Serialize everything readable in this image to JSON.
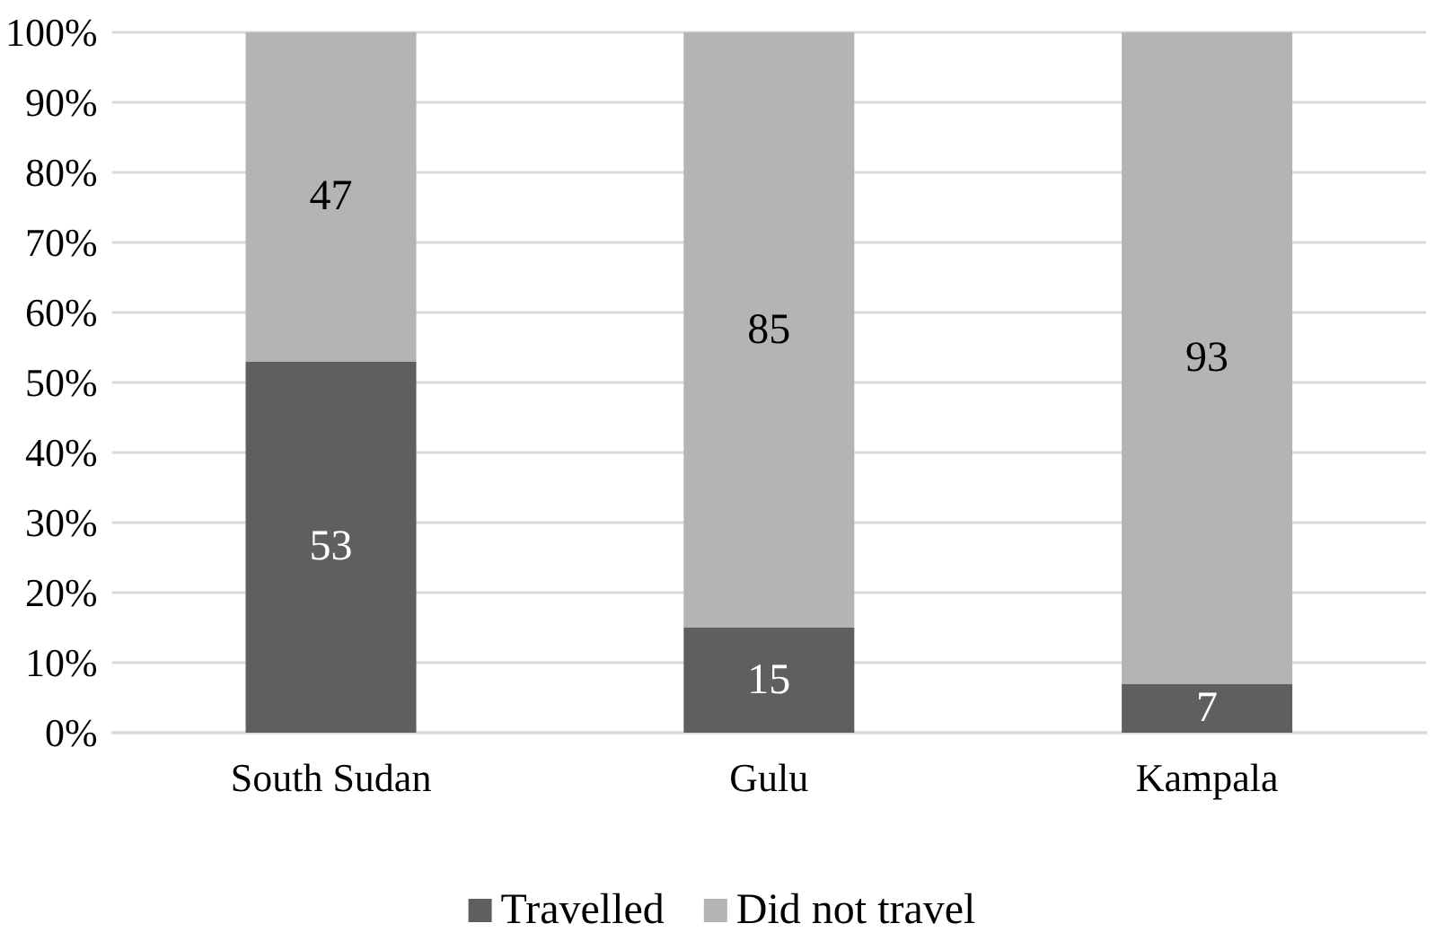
{
  "chart_data": {
    "type": "bar",
    "stacked": true,
    "categories": [
      "South Sudan",
      "Gulu",
      "Kampala"
    ],
    "series": [
      {
        "name": "Travelled",
        "color": "#5f5f5f",
        "values": [
          53,
          15,
          7
        ]
      },
      {
        "name": "Did not travel",
        "color": "#b4b4b4",
        "values": [
          47,
          85,
          93
        ]
      }
    ],
    "ylim": [
      0,
      100
    ],
    "yticks": [
      {
        "value": 0,
        "label": "0%"
      },
      {
        "value": 10,
        "label": "10%"
      },
      {
        "value": 20,
        "label": "20%"
      },
      {
        "value": 30,
        "label": "30%"
      },
      {
        "value": 40,
        "label": "40%"
      },
      {
        "value": 50,
        "label": "50%"
      },
      {
        "value": 60,
        "label": "60%"
      },
      {
        "value": 70,
        "label": "70%"
      },
      {
        "value": 80,
        "label": "80%"
      },
      {
        "value": 90,
        "label": "90%"
      },
      {
        "value": 100,
        "label": "100%"
      }
    ],
    "grid": "y",
    "legend": "bottom",
    "data_labels": true
  }
}
